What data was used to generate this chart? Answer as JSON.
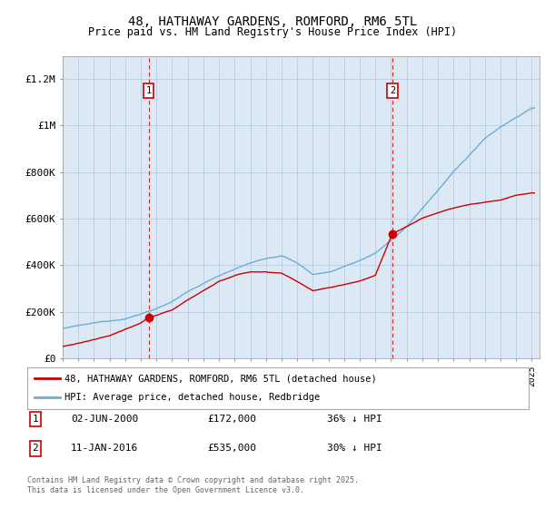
{
  "title": "48, HATHAWAY GARDENS, ROMFORD, RM6 5TL",
  "subtitle": "Price paid vs. HM Land Registry's House Price Index (HPI)",
  "title_fontsize": 10,
  "subtitle_fontsize": 8.5,
  "bg_color": "#ffffff",
  "plot_bg_color": "#dce9f5",
  "grid_color": "#b0c8e0",
  "red_color": "#cc0000",
  "blue_color": "#6aaed6",
  "marker1_idx": 66,
  "marker2_idx": 253,
  "marker1_date": "02-JUN-2000",
  "marker1_price": "£172,000",
  "marker1_hpi": "36% ↓ HPI",
  "marker2_date": "11-JAN-2016",
  "marker2_price": "£535,000",
  "marker2_hpi": "30% ↓ HPI",
  "legend_line1": "48, HATHAWAY GARDENS, ROMFORD, RM6 5TL (detached house)",
  "legend_line2": "HPI: Average price, detached house, Redbridge",
  "footer": "Contains HM Land Registry data © Crown copyright and database right 2025.\nThis data is licensed under the Open Government Licence v3.0.",
  "ylim_max": 1300000,
  "yticks": [
    0,
    200000,
    400000,
    600000,
    800000,
    1000000,
    1200000
  ],
  "ytick_labels": [
    "£0",
    "£200K",
    "£400K",
    "£600K",
    "£800K",
    "£1M",
    "£1.2M"
  ],
  "xstart": 1995,
  "xend": 2025.5,
  "hpi_anchors_x": [
    0,
    12,
    24,
    36,
    48,
    60,
    72,
    84,
    96,
    108,
    120,
    132,
    144,
    156,
    168,
    180,
    192,
    204,
    216,
    228,
    240,
    252,
    264,
    276,
    288,
    300,
    312,
    324,
    336,
    348,
    360
  ],
  "hpi_anchors_y": [
    128000,
    138000,
    148000,
    158000,
    170000,
    190000,
    215000,
    245000,
    285000,
    320000,
    355000,
    385000,
    410000,
    430000,
    440000,
    410000,
    360000,
    370000,
    395000,
    420000,
    455000,
    510000,
    570000,
    650000,
    730000,
    810000,
    880000,
    950000,
    1000000,
    1040000,
    1080000
  ],
  "price_anchors_x": [
    0,
    12,
    24,
    36,
    48,
    60,
    66,
    84,
    96,
    108,
    120,
    132,
    144,
    156,
    168,
    180,
    192,
    204,
    216,
    228,
    240,
    253,
    264,
    276,
    288,
    300,
    312,
    324,
    336,
    348,
    360
  ],
  "price_anchors_y": [
    50000,
    65000,
    80000,
    95000,
    120000,
    150000,
    172000,
    205000,
    250000,
    290000,
    330000,
    355000,
    370000,
    370000,
    365000,
    330000,
    290000,
    300000,
    315000,
    330000,
    355000,
    535000,
    565000,
    600000,
    625000,
    645000,
    660000,
    670000,
    680000,
    700000,
    710000
  ]
}
